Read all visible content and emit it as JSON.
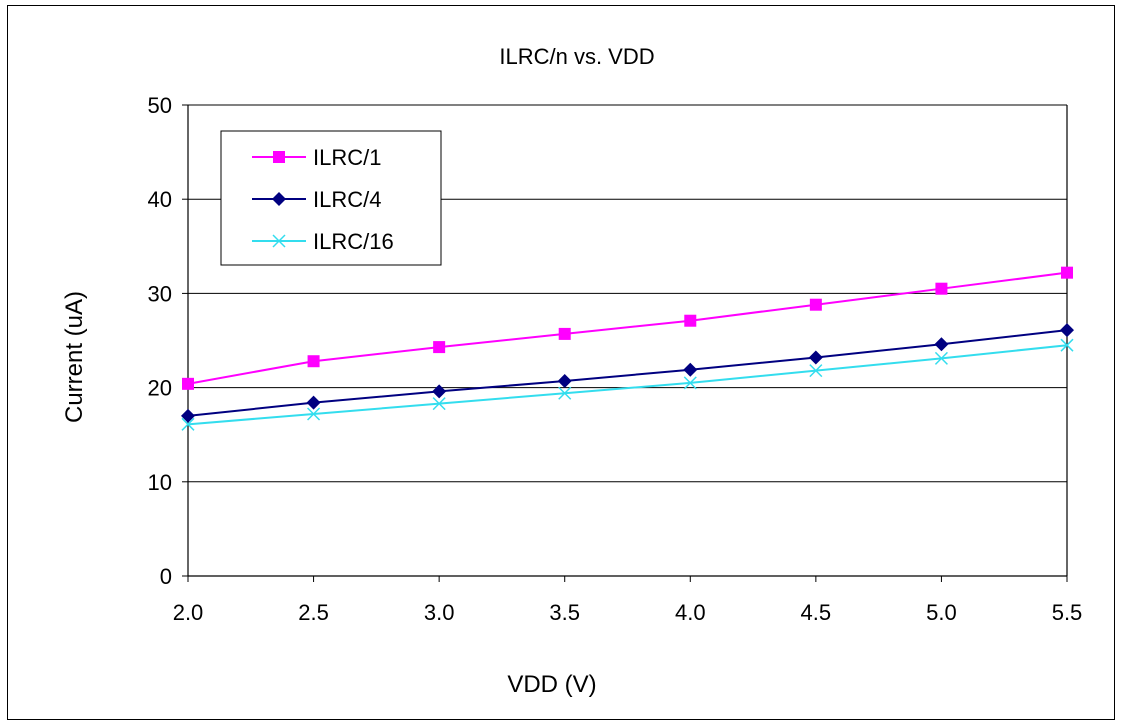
{
  "chart_data": {
    "type": "line",
    "title": "ILRC/n vs. VDD",
    "xlabel": "VDD (V)",
    "ylabel": "Current (uA)",
    "xlim": [
      2.0,
      5.5
    ],
    "ylim": [
      0,
      50
    ],
    "x_ticks": [
      "2.0",
      "2.5",
      "3.0",
      "3.5",
      "4.0",
      "4.5",
      "5.0",
      "5.5"
    ],
    "y_ticks": [
      "0",
      "10",
      "20",
      "30",
      "40",
      "50"
    ],
    "x": [
      2.0,
      2.5,
      3.0,
      3.5,
      4.0,
      4.5,
      5.0,
      5.5
    ],
    "grid": "horizontal",
    "legend_position": "top-left",
    "series": [
      {
        "name": "ILRC/1",
        "color": "#ff00ff",
        "marker": "square",
        "values": [
          20.4,
          22.8,
          24.3,
          25.7,
          27.1,
          28.8,
          30.5,
          32.2
        ]
      },
      {
        "name": "ILRC/4",
        "color": "#000080",
        "marker": "diamond",
        "values": [
          17.0,
          18.4,
          19.6,
          20.7,
          21.9,
          23.2,
          24.6,
          26.1
        ]
      },
      {
        "name": "ILRC/16",
        "color": "#33ddee",
        "marker": "x",
        "values": [
          16.1,
          17.2,
          18.3,
          19.4,
          20.5,
          21.8,
          23.1,
          24.5
        ]
      }
    ]
  }
}
